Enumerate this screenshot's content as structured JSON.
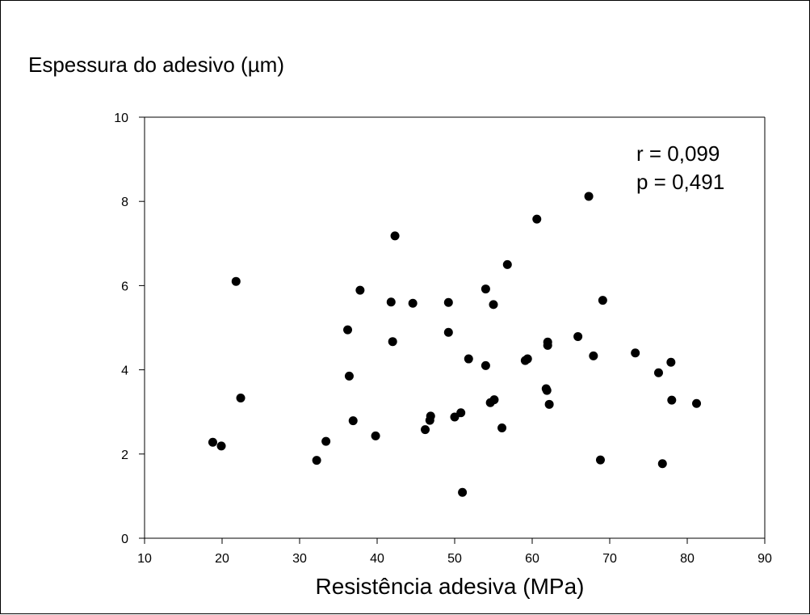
{
  "chart_data": {
    "type": "scatter",
    "ylabel": "Espessura do adesivo (µm)",
    "xlabel": "Resistência adesiva (MPa)",
    "xlim": [
      10,
      90
    ],
    "ylim": [
      0,
      10
    ],
    "xticks": [
      "10",
      "20",
      "30",
      "40",
      "50",
      "60",
      "70",
      "80",
      "90"
    ],
    "yticks": [
      "0",
      "2",
      "4",
      "6",
      "8",
      "10"
    ],
    "grid": false,
    "marker_color": "#000000",
    "annotation": {
      "line1": "r = 0,099",
      "line2": "p = 0,491"
    },
    "points": [
      {
        "x": 18.8,
        "y": 2.28
      },
      {
        "x": 19.9,
        "y": 2.19
      },
      {
        "x": 21.8,
        "y": 6.1
      },
      {
        "x": 22.4,
        "y": 3.33
      },
      {
        "x": 32.2,
        "y": 1.85
      },
      {
        "x": 33.4,
        "y": 2.3
      },
      {
        "x": 36.2,
        "y": 4.95
      },
      {
        "x": 36.4,
        "y": 3.85
      },
      {
        "x": 36.9,
        "y": 2.79
      },
      {
        "x": 37.8,
        "y": 5.89
      },
      {
        "x": 39.8,
        "y": 2.43
      },
      {
        "x": 41.8,
        "y": 5.61
      },
      {
        "x": 42.0,
        "y": 4.67
      },
      {
        "x": 42.3,
        "y": 7.18
      },
      {
        "x": 44.6,
        "y": 5.58
      },
      {
        "x": 46.2,
        "y": 2.58
      },
      {
        "x": 46.8,
        "y": 2.8
      },
      {
        "x": 46.9,
        "y": 2.9
      },
      {
        "x": 49.2,
        "y": 5.6
      },
      {
        "x": 49.2,
        "y": 4.89
      },
      {
        "x": 50.0,
        "y": 2.88
      },
      {
        "x": 50.8,
        "y": 2.98
      },
      {
        "x": 51.0,
        "y": 1.09
      },
      {
        "x": 51.8,
        "y": 4.26
      },
      {
        "x": 54.0,
        "y": 5.92
      },
      {
        "x": 54.0,
        "y": 4.1
      },
      {
        "x": 54.6,
        "y": 3.22
      },
      {
        "x": 55.0,
        "y": 5.55
      },
      {
        "x": 55.1,
        "y": 3.29
      },
      {
        "x": 56.1,
        "y": 2.62
      },
      {
        "x": 56.8,
        "y": 6.5
      },
      {
        "x": 59.1,
        "y": 4.22
      },
      {
        "x": 59.4,
        "y": 4.26
      },
      {
        "x": 60.6,
        "y": 7.58
      },
      {
        "x": 61.8,
        "y": 3.55
      },
      {
        "x": 61.9,
        "y": 3.51
      },
      {
        "x": 62.0,
        "y": 4.66
      },
      {
        "x": 62.0,
        "y": 4.58
      },
      {
        "x": 62.2,
        "y": 3.18
      },
      {
        "x": 65.9,
        "y": 4.79
      },
      {
        "x": 67.3,
        "y": 8.12
      },
      {
        "x": 67.9,
        "y": 4.33
      },
      {
        "x": 68.8,
        "y": 1.86
      },
      {
        "x": 69.1,
        "y": 5.65
      },
      {
        "x": 73.3,
        "y": 4.4
      },
      {
        "x": 76.3,
        "y": 3.93
      },
      {
        "x": 76.8,
        "y": 1.77
      },
      {
        "x": 77.9,
        "y": 4.18
      },
      {
        "x": 78.0,
        "y": 3.28
      },
      {
        "x": 81.2,
        "y": 3.2
      }
    ]
  }
}
